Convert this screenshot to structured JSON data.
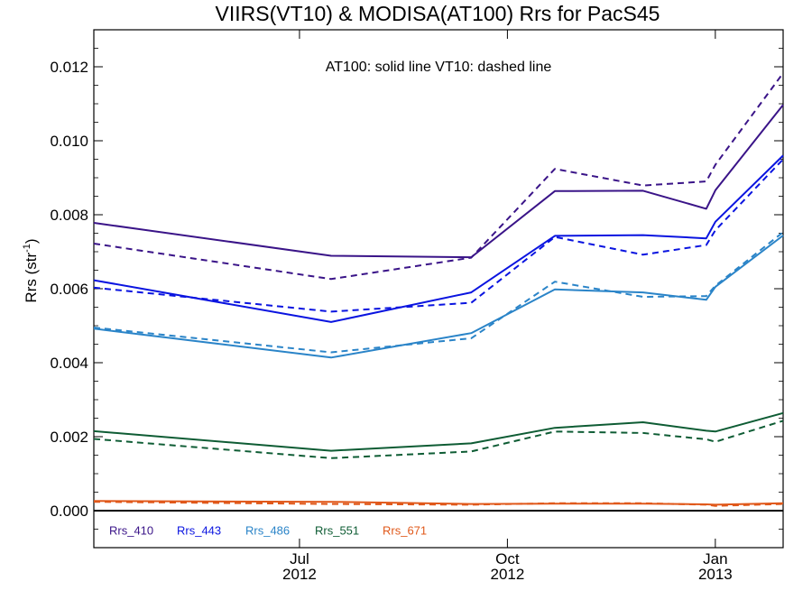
{
  "chart_data": {
    "type": "line",
    "title": "VIIRS(VT10) & MODISA(AT100)  Rrs for PacS45",
    "annotation": "AT100: solid line   VT10: dashed line",
    "ylabel": "Rrs (str",
    "ylabel_sup": "-1",
    "ylabel_close": ")",
    "ylim": [
      -0.001,
      0.013
    ],
    "yticks": [
      0.0,
      0.002,
      0.004,
      0.006,
      0.008,
      0.01,
      0.012
    ],
    "ytick_labels": [
      "0.000",
      "0.002",
      "0.004",
      "0.006",
      "0.008",
      "0.010",
      "0.012"
    ],
    "xlim": [
      "2012-04-01",
      "2013-01-31"
    ],
    "xticks": [
      {
        "date": "2012-07-01",
        "month": "Jul",
        "year": "2012"
      },
      {
        "date": "2012-10-01",
        "month": "Oct",
        "year": "2012"
      },
      {
        "date": "2013-01-01",
        "month": "Jan",
        "year": "2013"
      }
    ],
    "x": [
      "2012-04-01",
      "2012-07-15",
      "2012-09-15",
      "2012-10-22",
      "2012-11-30",
      "2012-12-28",
      "2013-01-01",
      "2013-01-31"
    ],
    "series": [
      {
        "name": "Rrs_410",
        "color": "#3a1488",
        "style": "solid",
        "values": [
          0.00778,
          0.00689,
          0.00685,
          0.00864,
          0.00865,
          0.00816,
          0.00866,
          0.01097
        ]
      },
      {
        "name": "Rrs_410",
        "color": "#3a1488",
        "style": "dashed",
        "values": [
          0.00722,
          0.00626,
          0.00684,
          0.00924,
          0.00879,
          0.0089,
          0.00935,
          0.01183
        ]
      },
      {
        "name": "Rrs_443",
        "color": "#0a14e0",
        "style": "solid",
        "values": [
          0.00623,
          0.0051,
          0.0059,
          0.00743,
          0.00745,
          0.00736,
          0.00781,
          0.0096
        ]
      },
      {
        "name": "Rrs_443",
        "color": "#0a14e0",
        "style": "dashed",
        "values": [
          0.00603,
          0.00538,
          0.00562,
          0.0074,
          0.00692,
          0.00718,
          0.00758,
          0.0095
        ]
      },
      {
        "name": "Rrs_486",
        "color": "#2a84c8",
        "style": "solid",
        "values": [
          0.00492,
          0.00414,
          0.0048,
          0.00598,
          0.0059,
          0.0057,
          0.00605,
          0.00744
        ]
      },
      {
        "name": "Rrs_486",
        "color": "#2a84c8",
        "style": "dashed",
        "values": [
          0.00495,
          0.00428,
          0.00466,
          0.00619,
          0.00578,
          0.0058,
          0.00608,
          0.00753
        ]
      },
      {
        "name": "Rrs_551",
        "color": "#0e5c34",
        "style": "solid",
        "values": [
          0.00215,
          0.00162,
          0.00182,
          0.00224,
          0.00239,
          0.00216,
          0.00214,
          0.00264
        ]
      },
      {
        "name": "Rrs_551",
        "color": "#0e5c34",
        "style": "dashed",
        "values": [
          0.00194,
          0.00142,
          0.0016,
          0.00214,
          0.0021,
          0.00193,
          0.00186,
          0.00243
        ]
      },
      {
        "name": "Rrs_671",
        "color": "#e0581a",
        "style": "solid",
        "values": [
          0.00026,
          0.00024,
          0.00018,
          0.00019,
          0.00019,
          0.00017,
          0.00016,
          0.0002
        ]
      },
      {
        "name": "Rrs_671",
        "color": "#e0581a",
        "style": "dashed",
        "values": [
          0.00024,
          0.00018,
          0.00016,
          0.0002,
          0.0002,
          0.00016,
          0.00013,
          0.00018
        ]
      }
    ],
    "legend": [
      {
        "label": "Rrs_410",
        "color": "#3a1488"
      },
      {
        "label": "Rrs_443",
        "color": "#0a14e0"
      },
      {
        "label": "Rrs_486",
        "color": "#2a84c8"
      },
      {
        "label": "Rrs_551",
        "color": "#0e5c34"
      },
      {
        "label": "Rrs_671",
        "color": "#e0581a"
      }
    ],
    "legend_position": "bottom-left",
    "grid": false,
    "zero_line": true
  }
}
